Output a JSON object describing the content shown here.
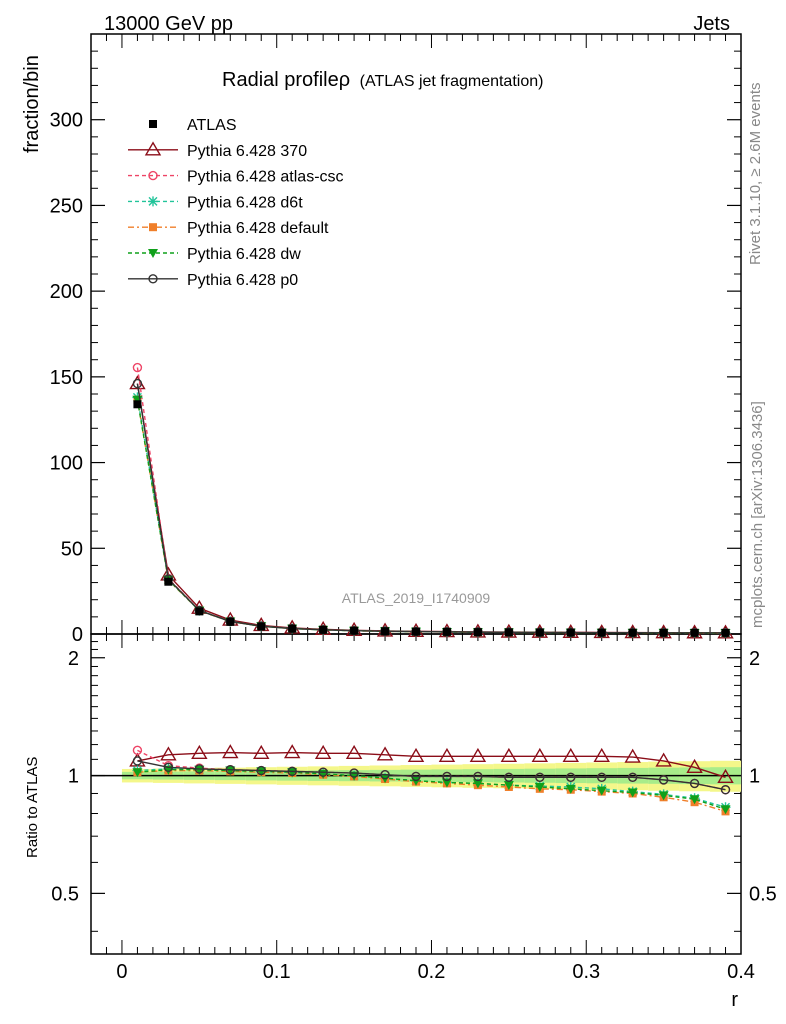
{
  "header": {
    "left": "13000 GeV pp",
    "right": "Jets"
  },
  "side": {
    "rivet": "Rivet 3.1.10, ≥ 2.6M events",
    "mcplots": "mcplots.cern.ch [arXiv:1306.3436]"
  },
  "chart_data": {
    "type": "line",
    "title": "Radial profileρ",
    "subtitle": "(ATLAS jet fragmentation)",
    "watermark": "ATLAS_2019_I1740909",
    "xlabel": "r",
    "ylabel": "fraction/bin",
    "ratio_ylabel": "Ratio to ATLAS",
    "xlim": [
      -0.02,
      0.4
    ],
    "ylim": [
      0,
      350
    ],
    "ratio_ylim": [
      0.35,
      2.3
    ],
    "x_ticks": [
      "0",
      "0.1",
      "0.2",
      "0.3",
      "0.4"
    ],
    "y_ticks": [
      "0",
      "50",
      "100",
      "150",
      "200",
      "250",
      "300"
    ],
    "ratio_ticks": [
      "0.5",
      "1",
      "2"
    ],
    "x": [
      0.01,
      0.03,
      0.05,
      0.07,
      0.09,
      0.11,
      0.13,
      0.15,
      0.17,
      0.19,
      0.21,
      0.23,
      0.25,
      0.27,
      0.29,
      0.31,
      0.33,
      0.35,
      0.37,
      0.39
    ],
    "data": {
      "name": "ATLAS",
      "values": [
        134,
        30.5,
        13.2,
        7.1,
        4.4,
        3.1,
        2.4,
        1.9,
        1.6,
        1.4,
        1.25,
        1.1,
        1.0,
        0.92,
        0.86,
        0.8,
        0.75,
        0.72,
        0.7,
        0.68
      ]
    },
    "series": [
      {
        "name": "Pythia 6.428 370",
        "color": "#8b0d18",
        "dash": "",
        "marker": "triangle-open",
        "ratio": [
          1.09,
          1.13,
          1.14,
          1.145,
          1.14,
          1.145,
          1.14,
          1.14,
          1.13,
          1.12,
          1.12,
          1.12,
          1.12,
          1.12,
          1.12,
          1.12,
          1.115,
          1.09,
          1.05,
          0.99
        ]
      },
      {
        "name": "Pythia 6.428 atlas-csc",
        "color": "#ee4466",
        "dash": "4,3",
        "marker": "circle-open",
        "ratio": [
          1.16,
          1.06,
          1.045,
          1.035,
          1.03,
          1.025,
          1.02,
          1.015,
          1.005,
          0.995,
          0.995,
          0.995,
          0.99,
          0.99,
          0.99,
          0.99,
          0.99,
          0.975,
          0.955,
          0.92
        ]
      },
      {
        "name": "Pythia 6.428 d6t",
        "color": "#22c49a",
        "dash": "4,3",
        "marker": "star",
        "ratio": [
          1.03,
          1.04,
          1.035,
          1.03,
          1.025,
          1.02,
          1.01,
          1.0,
          0.985,
          0.97,
          0.96,
          0.955,
          0.945,
          0.94,
          0.935,
          0.925,
          0.91,
          0.895,
          0.875,
          0.83
        ]
      },
      {
        "name": "Pythia 6.428 default",
        "color": "#f07f2a",
        "dash": "6,3,2,3",
        "marker": "square",
        "ratio": [
          1.02,
          1.03,
          1.03,
          1.025,
          1.02,
          1.015,
          1.005,
          0.995,
          0.98,
          0.965,
          0.955,
          0.945,
          0.935,
          0.925,
          0.92,
          0.91,
          0.9,
          0.88,
          0.855,
          0.81
        ]
      },
      {
        "name": "Pythia 6.428 dw",
        "color": "#0fa01a",
        "dash": "4,3",
        "marker": "triangle-down",
        "ratio": [
          1.02,
          1.035,
          1.035,
          1.03,
          1.025,
          1.02,
          1.01,
          1.0,
          0.985,
          0.97,
          0.96,
          0.955,
          0.945,
          0.935,
          0.925,
          0.915,
          0.905,
          0.89,
          0.87,
          0.82
        ]
      },
      {
        "name": "Pythia 6.428 p0",
        "color": "#333333",
        "dash": "",
        "marker": "circle-open",
        "ratio": [
          1.09,
          1.05,
          1.04,
          1.035,
          1.03,
          1.025,
          1.02,
          1.015,
          1.005,
          0.995,
          0.995,
          0.995,
          0.99,
          0.99,
          0.99,
          0.99,
          0.99,
          0.975,
          0.955,
          0.92
        ]
      }
    ],
    "legend_position": "top-left",
    "grid": false
  }
}
